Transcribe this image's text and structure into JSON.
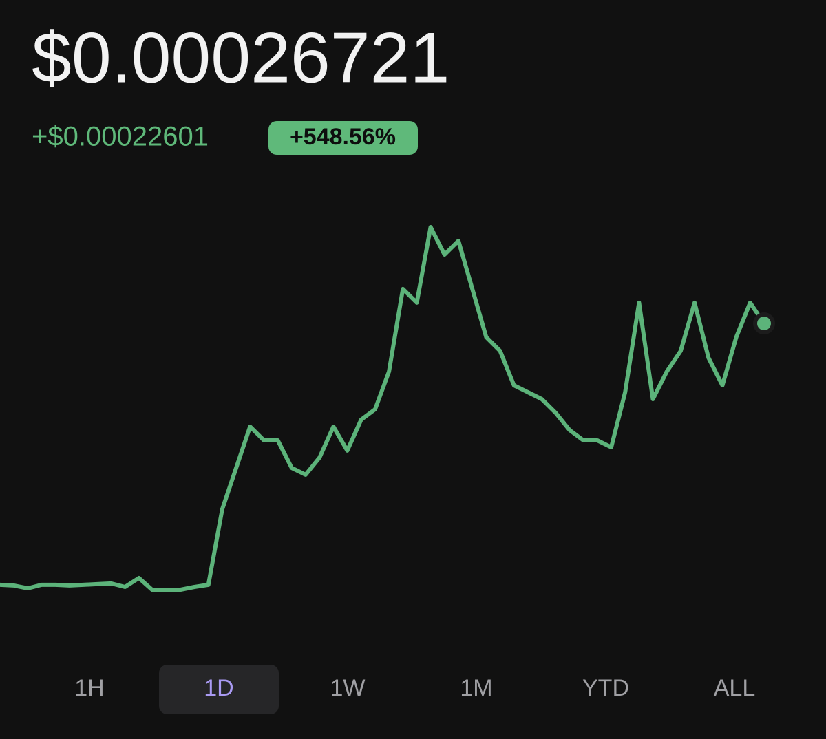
{
  "price": "$0.00026721",
  "change": "+$0.00022601",
  "change_pct": "+548.56%",
  "chart_data": {
    "type": "line",
    "color": "#5cb37a",
    "values": [
      4.12e-05,
      4.06e-05,
      3.82e-05,
      4.12e-05,
      4.12e-05,
      4.06e-05,
      4.12e-05,
      4.18e-05,
      4.24e-05,
      3.94e-05,
      4.71e-05,
      3.64e-05,
      3.64e-05,
      3.7e-05,
      3.94e-05,
      4.12e-05,
      0.0001066,
      0.0001423,
      0.000178,
      0.0001661,
      0.0001661,
      0.0001423,
      0.0001364,
      0.0001512,
      0.000178,
      0.0001572,
      0.000184,
      0.0001929,
      0.0002256,
      0.000297,
      0.0002851,
      0.0003505,
      0.0003267,
      0.0003386,
      0.000297,
      0.0002553,
      0.0002434,
      0.0002137,
      0.0002077,
      0.0002018,
      0.0001899,
      0.000175,
      0.0001661,
      0.0001661,
      0.0001602,
      0.0002077,
      0.0002851,
      0.0002018,
      0.0002256,
      0.0002434,
      0.0002851,
      0.0002375,
      0.0002137,
      0.0002553,
      0.0002851,
      0.00026721
    ]
  },
  "ranges": [
    "1H",
    "1D",
    "1W",
    "1M",
    "YTD",
    "ALL"
  ],
  "selected_range": 1
}
